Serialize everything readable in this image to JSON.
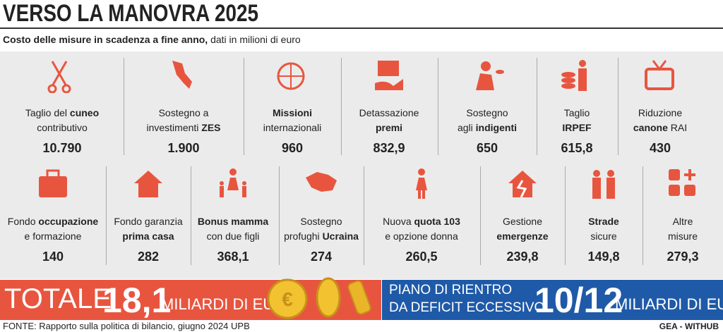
{
  "header": {
    "title": "VERSO LA MANOVRA 2025",
    "subtitle_bold": "Costo delle misure in scadenza a fine anno,",
    "subtitle": "dati in milioni di euro"
  },
  "row1": [
    {
      "label": [
        [
          {
            "t": "Taglio del "
          },
          {
            "t": "cuneo",
            "b": true
          }
        ],
        [
          {
            "t": "contributivo"
          }
        ]
      ],
      "value": "10.790"
    },
    {
      "label": [
        [
          {
            "t": "Sostegno a"
          }
        ],
        [
          {
            "t": "investimenti "
          },
          {
            "t": "ZES",
            "b": true
          }
        ]
      ],
      "value": "1.900"
    },
    {
      "label": [
        [
          {
            "t": "Missioni",
            "b": true
          }
        ],
        [
          {
            "t": "internazionali"
          }
        ]
      ],
      "value": "960"
    },
    {
      "label": [
        [
          {
            "t": "Detassazione"
          }
        ],
        [
          {
            "t": "premi",
            "b": true
          }
        ]
      ],
      "value": "832,9"
    },
    {
      "label": [
        [
          {
            "t": "Sostegno"
          }
        ],
        [
          {
            "t": "agli "
          },
          {
            "t": "indigenti",
            "b": true
          }
        ]
      ],
      "value": "650"
    },
    {
      "label": [
        [
          {
            "t": "Taglio"
          }
        ],
        [
          {
            "t": "IRPEF",
            "b": true
          }
        ]
      ],
      "value": "615,8"
    },
    {
      "label": [
        [
          {
            "t": "Riduzione"
          }
        ],
        [
          {
            "t": "canone",
            "b": true
          },
          {
            "t": " RAI"
          }
        ]
      ],
      "value": "430"
    }
  ],
  "row2": [
    {
      "label": [
        [
          {
            "t": "Fondo "
          },
          {
            "t": "occupazione",
            "b": true
          }
        ],
        [
          {
            "t": "e formazione"
          }
        ]
      ],
      "value": "140"
    },
    {
      "label": [
        [
          {
            "t": "Fondo garanzia"
          }
        ],
        [
          {
            "t": "prima casa",
            "b": true
          }
        ]
      ],
      "value": "282"
    },
    {
      "label": [
        [
          {
            "t": "Bonus mamma",
            "b": true
          }
        ],
        [
          {
            "t": "con due figli"
          }
        ]
      ],
      "value": "368,1"
    },
    {
      "label": [
        [
          {
            "t": "Sostegno"
          }
        ],
        [
          {
            "t": "profughi "
          },
          {
            "t": "Ucraina",
            "b": true
          }
        ]
      ],
      "value": "274"
    },
    {
      "label": [
        [
          {
            "t": "Nuova "
          },
          {
            "t": "quota 103",
            "b": true
          }
        ],
        [
          {
            "t": "e opzione donna"
          }
        ]
      ],
      "value": "260,5"
    },
    {
      "label": [
        [
          {
            "t": "Gestione"
          }
        ],
        [
          {
            "t": "emergenze",
            "b": true
          }
        ]
      ],
      "value": "239,8"
    },
    {
      "label": [
        [
          {
            "t": "Strade",
            "b": true
          }
        ],
        [
          {
            "t": "sicure"
          }
        ]
      ],
      "value": "149,8"
    },
    {
      "label": [
        [
          {
            "t": "Altre"
          }
        ],
        [
          {
            "t": "misure"
          }
        ]
      ],
      "value": "279,3"
    }
  ],
  "total": {
    "label": "TOTALE",
    "value": "18,1",
    "unit": "MILIARDI DI EURO"
  },
  "plan": {
    "line1": "PIANO DI RIENTRO",
    "line2": "DA DEFICIT ECCESSIVO",
    "value": "10/12",
    "unit": "MILIARDI DI EURO"
  },
  "footer": {
    "source": "FONTE: Rapporto sulla politica di bilancio, giugno 2024 UPB",
    "credit": "GEA - WITHUB"
  }
}
